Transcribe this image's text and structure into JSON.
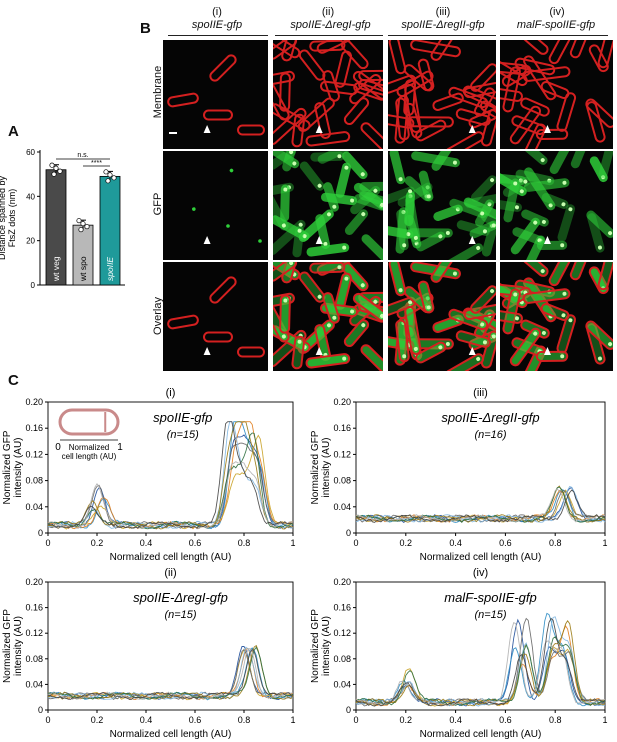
{
  "panels": {
    "A": {
      "letter": "A",
      "y_axis_label_lines": [
        "Distance spanned by",
        "FtsZ dots (nm)"
      ],
      "y_ticks": [
        "0",
        "20",
        "40",
        "60"
      ],
      "bars": [
        {
          "label": "wt veg",
          "value": 52,
          "color": "#4a4a4a"
        },
        {
          "label": "wt spo",
          "value": 27,
          "color": "#b8b8b8"
        },
        {
          "label": "spoIIE",
          "value": 49,
          "color": "#1f9a9a"
        }
      ],
      "significance": [
        "n.s.",
        "****"
      ],
      "ylim": [
        0,
        60
      ]
    },
    "B": {
      "letter": "B",
      "columns": [
        {
          "roman": "(i)",
          "name": "spoIIE-gfp"
        },
        {
          "roman": "(ii)",
          "name": "spoIIE-ΔregI-gfp"
        },
        {
          "roman": "(iii)",
          "name": "spoIIE-ΔregII-gfp"
        },
        {
          "roman": "(iv)",
          "name": "malF-spoIIE-gfp"
        }
      ],
      "rows": [
        "Membrane",
        "GFP",
        "Overlay"
      ]
    },
    "C": {
      "letter": "C",
      "inset_caption_lines": [
        "Normalized",
        "cell length (AU)"
      ],
      "inset_ends": [
        "0",
        "1"
      ]
    }
  },
  "chart_data": [
    {
      "type": "line",
      "panel": "(i)",
      "title": "spoIIE-gfp",
      "subtitle": "(n=15)",
      "xlabel": "Normalized cell length (AU)",
      "ylabel": "Normalized GFP intensity (AU)",
      "xlim": [
        0,
        1
      ],
      "ylim": [
        0,
        0.2
      ],
      "x_ticks": [
        "0",
        "0.2",
        "0.4",
        "0.6",
        "0.8",
        "1"
      ],
      "y_ticks": [
        "0",
        "0.04",
        "0.08",
        "0.12",
        "0.16",
        "0.20"
      ],
      "peaks": [
        {
          "center": 0.2,
          "height": 0.06
        },
        {
          "center": 0.75,
          "height": 0.16
        },
        {
          "center": 0.8,
          "height": 0.15
        },
        {
          "center": 0.85,
          "height": 0.13
        }
      ],
      "baseline": 0.01
    },
    {
      "type": "line",
      "panel": "(iii)",
      "title": "spoIIE-ΔregII-gfp",
      "subtitle": "(n=16)",
      "xlabel": "Normalized cell length (AU)",
      "ylabel": "Normalized GFP intensity (AU)",
      "xlim": [
        0,
        1
      ],
      "ylim": [
        0,
        0.2
      ],
      "x_ticks": [
        "0",
        "0.2",
        "0.4",
        "0.6",
        "0.8",
        "1"
      ],
      "y_ticks": [
        "0",
        "0.04",
        "0.08",
        "0.12",
        "0.16",
        "0.20"
      ],
      "peaks": [
        {
          "center": 0.84,
          "height": 0.045
        }
      ],
      "baseline": 0.02
    },
    {
      "type": "line",
      "panel": "(ii)",
      "title": "spoIIE-ΔregI-gfp",
      "subtitle": "(n=15)",
      "xlabel": "Normalized cell length (AU)",
      "ylabel": "Normalized GFP intensity (AU)",
      "xlim": [
        0,
        1
      ],
      "ylim": [
        0,
        0.2
      ],
      "x_ticks": [
        "0",
        "0.2",
        "0.4",
        "0.6",
        "0.8",
        "1"
      ],
      "y_ticks": [
        "0",
        "0.04",
        "0.08",
        "0.12",
        "0.16",
        "0.20"
      ],
      "peaks": [
        {
          "center": 0.82,
          "height": 0.075
        }
      ],
      "baseline": 0.02
    },
    {
      "type": "line",
      "panel": "(iv)",
      "title": "malF-spoIIE-gfp",
      "subtitle": "(n=15)",
      "xlabel": "Normalized cell length (AU)",
      "ylabel": "Normalized GFP intensity (AU)",
      "xlim": [
        0,
        1
      ],
      "ylim": [
        0,
        0.2
      ],
      "x_ticks": [
        "0",
        "0.2",
        "0.4",
        "0.6",
        "0.8",
        "1"
      ],
      "y_ticks": [
        "0",
        "0.04",
        "0.08",
        "0.12",
        "0.16",
        "0.20"
      ],
      "peaks": [
        {
          "center": 0.66,
          "height": 0.13
        },
        {
          "center": 0.78,
          "height": 0.13
        },
        {
          "center": 0.84,
          "height": 0.12
        },
        {
          "center": 0.2,
          "height": 0.05
        }
      ],
      "baseline": 0.01
    }
  ],
  "colors": {
    "membrane": "#d42020",
    "gfp": "#2fd03a",
    "arrowhead": "#ffffff",
    "trace_palette": [
      "#1f4e9a",
      "#2b8cc4",
      "#e07b1a",
      "#c9a227",
      "#666666",
      "#7fb6e0",
      "#9a7a12",
      "#2e6e3e",
      "#b0b0b0",
      "#444444"
    ]
  }
}
